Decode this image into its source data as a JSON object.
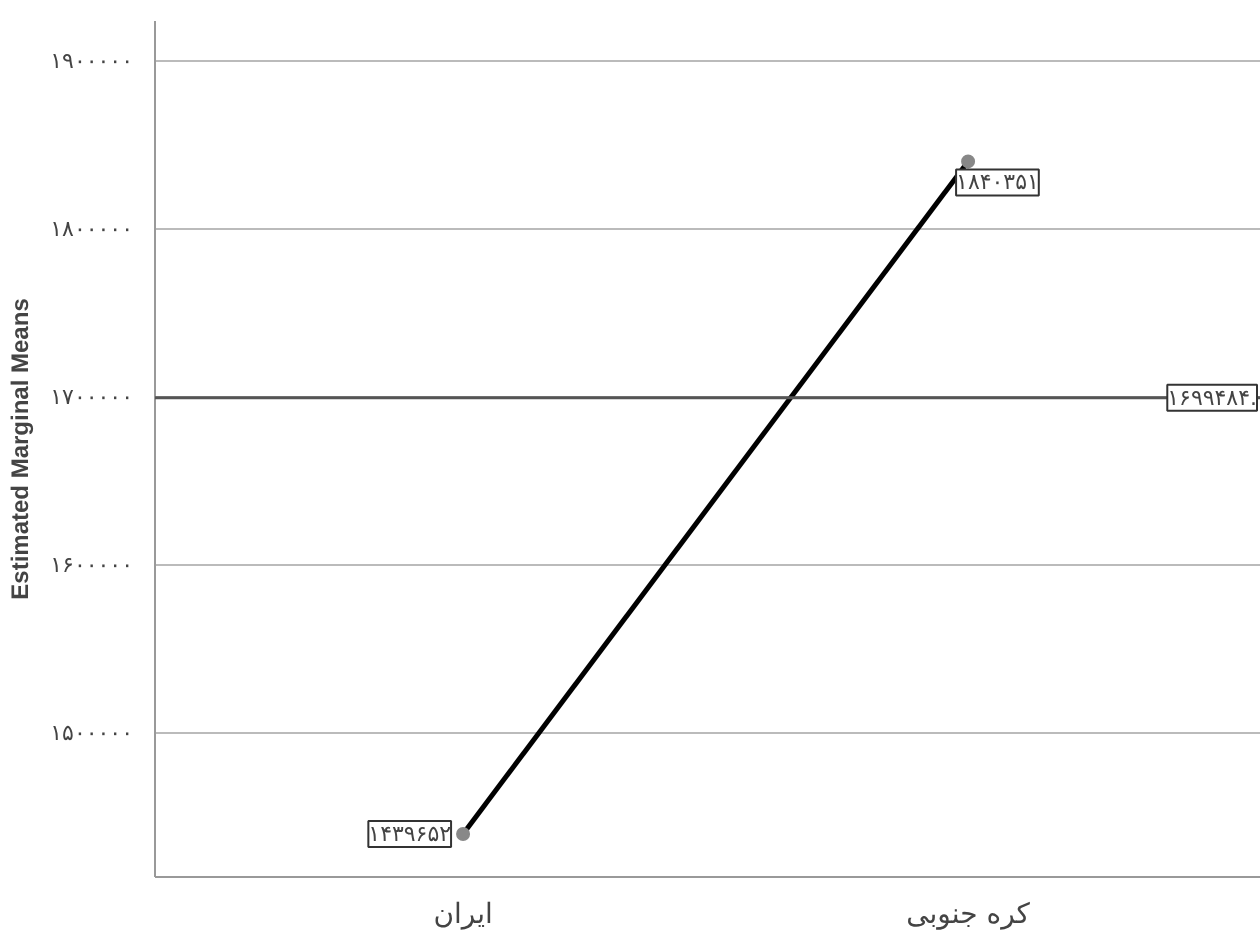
{
  "chart_data": {
    "type": "line",
    "ylabel": "Estimated Marginal Means",
    "categories": [
      "ایران",
      "کره جنوبی"
    ],
    "series": [
      {
        "color": "#000000",
        "values": [
          1439652,
          1840351
        ],
        "value_labels": [
          "۱۴۳۹۶۵۲",
          "۱۸۴۰۳۵۱"
        ]
      }
    ],
    "marker": "circle",
    "ylim": [
      1414000,
      1924000
    ],
    "yticks": [
      {
        "value": 1500000,
        "label": "۱۵۰۰۰۰۰"
      },
      {
        "value": 1600000,
        "label": "۱۶۰۰۰۰۰"
      },
      {
        "value": 1700000,
        "label": "۱۷۰۰۰۰۰"
      },
      {
        "value": 1800000,
        "label": "۱۸۰۰۰۰۰"
      },
      {
        "value": 1900000,
        "label": "۱۹۰۰۰۰۰"
      }
    ],
    "grid": "y",
    "ref_lines": [
      {
        "axis": "y",
        "value": 1699484,
        "label": "۱۶۹۹۴۸۴.",
        "color": "#555555"
      }
    ]
  }
}
